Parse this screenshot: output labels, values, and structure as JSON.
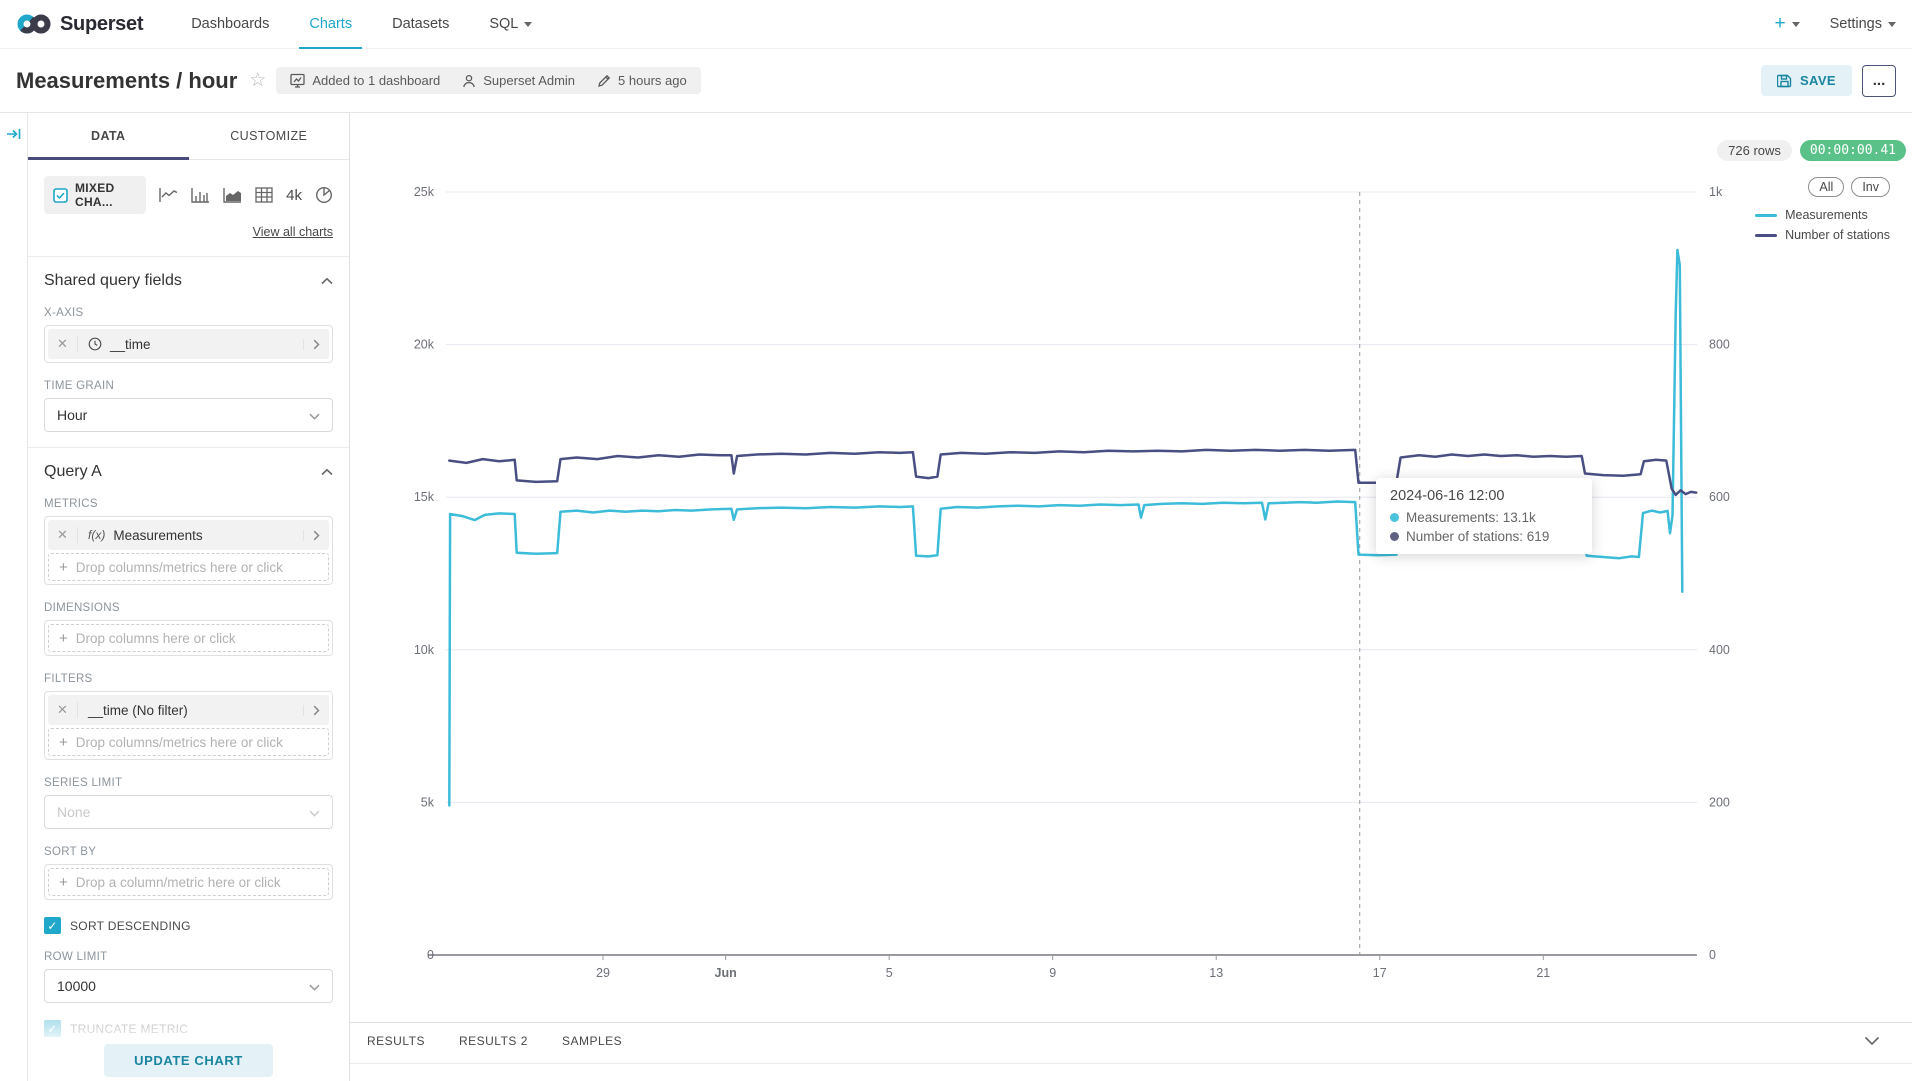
{
  "navbar": {
    "brand": "Superset",
    "items": [
      {
        "label": "Dashboards",
        "active": false
      },
      {
        "label": "Charts",
        "active": true
      },
      {
        "label": "Datasets",
        "active": false
      },
      {
        "label": "SQL",
        "active": false
      }
    ],
    "plus_label": "+",
    "settings_label": "Settings"
  },
  "header": {
    "title": "Measurements / hour",
    "dashboard_badge": "Added to 1 dashboard",
    "owner_badge": "Superset Admin",
    "modified_badge": "5 hours ago",
    "save_label": "SAVE",
    "more_label": "..."
  },
  "panel": {
    "tabs": {
      "data": "DATA",
      "customize": "CUSTOMIZE"
    },
    "viz": {
      "selected": "MIXED CHA...",
      "option_4k": "4k",
      "view_all": "View all charts"
    },
    "shared": {
      "title": "Shared query fields",
      "x_axis_label": "X-AXIS",
      "x_axis_value": "__time",
      "time_grain_label": "TIME GRAIN",
      "time_grain_value": "Hour"
    },
    "query_a": {
      "title": "Query A",
      "metrics_label": "METRICS",
      "metrics_fx": "f(x)",
      "metrics_value": "Measurements",
      "metrics_drop": "Drop columns/metrics here or click",
      "dimensions_label": "DIMENSIONS",
      "dimensions_drop": "Drop columns here or click",
      "filters_label": "FILTERS",
      "filters_value": "__time (No filter)",
      "filters_drop": "Drop columns/metrics here or click",
      "series_limit_label": "SERIES LIMIT",
      "series_limit_placeholder": "None",
      "sort_by_label": "SORT BY",
      "sort_by_drop": "Drop a column/metric here or click",
      "sort_descending_label": "SORT DESCENDING",
      "row_limit_label": "ROW LIMIT",
      "row_limit_value": "10000",
      "truncate_metric_label": "TRUNCATE METRIC"
    },
    "update_button": "UPDATE CHART"
  },
  "chart": {
    "rows_badge": "726 rows",
    "timer": "00:00:00.41",
    "all_button": "All",
    "inverse_button": "Inv",
    "legend": [
      {
        "label": "Measurements",
        "color": "#3dbcd9"
      },
      {
        "label": "Number of stations",
        "color": "#494f82"
      }
    ],
    "tooltip": {
      "title": "2024-06-16 12:00",
      "items": [
        {
          "label": "Measurements",
          "value": "13.1k",
          "color": "#4ac2dc"
        },
        {
          "label": "Number of stations",
          "value": "619",
          "color": "#5f6183"
        }
      ]
    }
  },
  "results": {
    "tabs": [
      "RESULTS",
      "RESULTS 2",
      "SAMPLES"
    ]
  },
  "chart_data": {
    "type": "line",
    "title": "Measurements / hour",
    "x_domain": [
      0,
      30.6
    ],
    "x_unit": "days (hourly data, late May to late June 2024)",
    "x_ticks": [
      {
        "pos": 3.84,
        "label": "29",
        "bold": false
      },
      {
        "pos": 6.84,
        "label": "Jun",
        "bold": true
      },
      {
        "pos": 10.84,
        "label": "5",
        "bold": false
      },
      {
        "pos": 14.84,
        "label": "9",
        "bold": false
      },
      {
        "pos": 18.84,
        "label": "13",
        "bold": false
      },
      {
        "pos": 22.84,
        "label": "17",
        "bold": false
      },
      {
        "pos": 26.84,
        "label": "21",
        "bold": false
      }
    ],
    "left_axis": {
      "range": [
        0,
        25000
      ],
      "ticks": [
        "0",
        "5k",
        "10k",
        "15k",
        "20k",
        "25k"
      ]
    },
    "right_axis": {
      "range": [
        0,
        1000
      ],
      "ticks": [
        "0",
        "200",
        "400",
        "600",
        "800",
        "1k"
      ]
    },
    "crosshair_pos": 22.35,
    "grid": true,
    "legend_position": "top-right",
    "series": [
      {
        "name": "Measurements",
        "axis": "left",
        "color": "#3dbcd9",
        "points": [
          [
            0.08,
            4900
          ],
          [
            0.1,
            14450
          ],
          [
            0.4,
            14380
          ],
          [
            0.7,
            14250
          ],
          [
            0.95,
            14420
          ],
          [
            1.3,
            14470
          ],
          [
            1.68,
            14450
          ],
          [
            1.73,
            13180
          ],
          [
            2.2,
            13150
          ],
          [
            2.72,
            13170
          ],
          [
            2.8,
            14520
          ],
          [
            3.2,
            14560
          ],
          [
            3.6,
            14500
          ],
          [
            4.0,
            14560
          ],
          [
            4.4,
            14520
          ],
          [
            4.8,
            14560
          ],
          [
            5.2,
            14540
          ],
          [
            5.6,
            14580
          ],
          [
            6.0,
            14560
          ],
          [
            6.5,
            14600
          ],
          [
            6.98,
            14620
          ],
          [
            7.04,
            14260
          ],
          [
            7.12,
            14600
          ],
          [
            7.6,
            14640
          ],
          [
            8.2,
            14660
          ],
          [
            8.8,
            14640
          ],
          [
            9.4,
            14680
          ],
          [
            10.0,
            14660
          ],
          [
            10.6,
            14700
          ],
          [
            11.1,
            14680
          ],
          [
            11.42,
            14700
          ],
          [
            11.5,
            13080
          ],
          [
            11.8,
            13060
          ],
          [
            12.02,
            13100
          ],
          [
            12.1,
            14620
          ],
          [
            12.5,
            14680
          ],
          [
            13.0,
            14660
          ],
          [
            13.5,
            14700
          ],
          [
            14.0,
            14720
          ],
          [
            14.5,
            14700
          ],
          [
            15.0,
            14740
          ],
          [
            15.5,
            14720
          ],
          [
            16.0,
            14760
          ],
          [
            16.5,
            14740
          ],
          [
            16.94,
            14760
          ],
          [
            17.0,
            14330
          ],
          [
            17.08,
            14740
          ],
          [
            17.5,
            14780
          ],
          [
            18.0,
            14800
          ],
          [
            18.5,
            14780
          ],
          [
            19.0,
            14820
          ],
          [
            19.5,
            14800
          ],
          [
            19.96,
            14820
          ],
          [
            20.04,
            14270
          ],
          [
            20.12,
            14800
          ],
          [
            20.5,
            14820
          ],
          [
            20.9,
            14840
          ],
          [
            21.3,
            14820
          ],
          [
            21.8,
            14860
          ],
          [
            22.24,
            14840
          ],
          [
            22.32,
            13120
          ],
          [
            22.8,
            13100
          ],
          [
            23.25,
            13120
          ],
          [
            23.35,
            14780
          ],
          [
            23.6,
            15020
          ],
          [
            23.85,
            14900
          ],
          [
            24.1,
            14980
          ],
          [
            24.4,
            14900
          ],
          [
            24.7,
            14950
          ],
          [
            25.0,
            14900
          ],
          [
            25.4,
            14930
          ],
          [
            25.8,
            14880
          ],
          [
            26.2,
            14910
          ],
          [
            26.6,
            14870
          ],
          [
            27.0,
            14900
          ],
          [
            27.4,
            14870
          ],
          [
            27.82,
            14890
          ],
          [
            27.9,
            13080
          ],
          [
            28.3,
            13040
          ],
          [
            28.7,
            13000
          ],
          [
            29.0,
            13060
          ],
          [
            29.18,
            13040
          ],
          [
            29.28,
            14480
          ],
          [
            29.5,
            14560
          ],
          [
            29.7,
            14500
          ],
          [
            29.88,
            14550
          ],
          [
            29.94,
            13820
          ],
          [
            30.0,
            14400
          ],
          [
            30.08,
            21000
          ],
          [
            30.12,
            23100
          ],
          [
            30.18,
            22600
          ],
          [
            30.24,
            11900
          ]
        ]
      },
      {
        "name": "Number of stations",
        "axis": "right",
        "color": "#494f82",
        "points": [
          [
            0.08,
            648
          ],
          [
            0.5,
            645
          ],
          [
            0.9,
            650
          ],
          [
            1.3,
            647
          ],
          [
            1.68,
            649
          ],
          [
            1.73,
            622
          ],
          [
            2.2,
            620
          ],
          [
            2.72,
            621
          ],
          [
            2.8,
            650
          ],
          [
            3.2,
            652
          ],
          [
            3.7,
            650
          ],
          [
            4.2,
            654
          ],
          [
            4.7,
            652
          ],
          [
            5.2,
            655
          ],
          [
            5.7,
            653
          ],
          [
            6.2,
            656
          ],
          [
            6.7,
            655
          ],
          [
            6.98,
            655
          ],
          [
            7.04,
            631
          ],
          [
            7.12,
            654
          ],
          [
            7.6,
            656
          ],
          [
            8.2,
            657
          ],
          [
            8.8,
            656
          ],
          [
            9.4,
            658
          ],
          [
            10.0,
            657
          ],
          [
            10.6,
            659
          ],
          [
            11.1,
            658
          ],
          [
            11.42,
            659
          ],
          [
            11.5,
            627
          ],
          [
            11.8,
            625
          ],
          [
            12.02,
            627
          ],
          [
            12.1,
            656
          ],
          [
            12.6,
            658
          ],
          [
            13.2,
            657
          ],
          [
            13.8,
            659
          ],
          [
            14.4,
            658
          ],
          [
            15.0,
            660
          ],
          [
            15.6,
            659
          ],
          [
            16.2,
            661
          ],
          [
            16.8,
            660
          ],
          [
            17.4,
            661
          ],
          [
            18.0,
            660
          ],
          [
            18.6,
            662
          ],
          [
            19.2,
            661
          ],
          [
            19.8,
            662
          ],
          [
            20.4,
            661
          ],
          [
            21.0,
            662
          ],
          [
            21.6,
            661
          ],
          [
            22.24,
            662
          ],
          [
            22.32,
            619
          ],
          [
            22.8,
            619
          ],
          [
            23.25,
            620
          ],
          [
            23.35,
            652
          ],
          [
            23.8,
            655
          ],
          [
            24.2,
            653
          ],
          [
            24.6,
            656
          ],
          [
            25.0,
            654
          ],
          [
            25.4,
            656
          ],
          [
            25.8,
            654
          ],
          [
            26.2,
            655
          ],
          [
            26.6,
            653
          ],
          [
            27.0,
            654
          ],
          [
            27.4,
            653
          ],
          [
            27.78,
            654
          ],
          [
            27.86,
            631
          ],
          [
            28.3,
            629
          ],
          [
            28.8,
            628
          ],
          [
            29.22,
            630
          ],
          [
            29.3,
            647
          ],
          [
            29.6,
            649
          ],
          [
            29.85,
            648
          ],
          [
            29.98,
            611
          ],
          [
            30.08,
            603
          ],
          [
            30.2,
            609
          ],
          [
            30.32,
            604
          ],
          [
            30.45,
            607
          ],
          [
            30.58,
            606
          ]
        ]
      }
    ]
  }
}
